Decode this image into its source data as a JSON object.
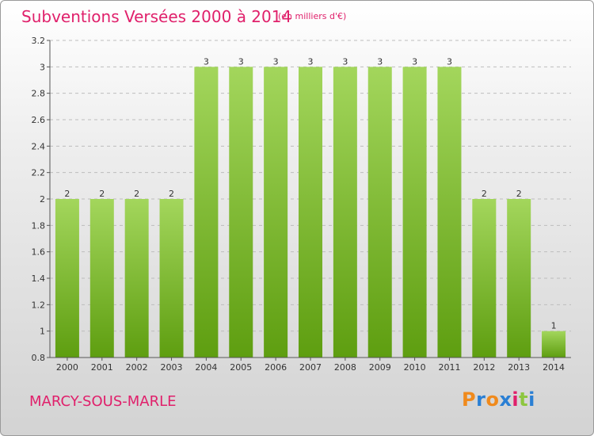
{
  "header": {
    "title": "Subventions Versées 2000 à 2014",
    "subtitle": "(en milliers d'€)"
  },
  "footer": {
    "commune": "MARCY-SOUS-MARLE",
    "logo_letters": [
      "P",
      "r",
      "o",
      "x",
      "i",
      "t",
      "i"
    ],
    "logo_colors": [
      "#f08a1c",
      "#2a7fd4",
      "#f08a1c",
      "#2a7fd4",
      "#e0206b",
      "#8dc63f",
      "#2a7fd4"
    ]
  },
  "colors": {
    "bar_top": "#a3d65c",
    "bar_bottom": "#5e9e10",
    "accent": "#e0206b",
    "grid": "#bdbdbd"
  },
  "chart_data": {
    "type": "bar",
    "title": "Subventions Versées 2000 à 2014",
    "subtitle": "(en milliers d'€)",
    "xlabel": "",
    "ylabel": "",
    "categories": [
      "2000",
      "2001",
      "2002",
      "2003",
      "2004",
      "2005",
      "2006",
      "2007",
      "2008",
      "2009",
      "2010",
      "2011",
      "2012",
      "2013",
      "2014"
    ],
    "values": [
      2,
      2,
      2,
      2,
      3,
      3,
      3,
      3,
      3,
      3,
      3,
      3,
      2,
      2,
      1
    ],
    "value_labels": [
      "2",
      "2",
      "2",
      "2",
      "3",
      "3",
      "3",
      "3",
      "3",
      "3",
      "3",
      "3",
      "2",
      "2",
      "1"
    ],
    "ylim": [
      0.8,
      3.2
    ],
    "yticks": [
      0.8,
      1,
      1.2,
      1.4,
      1.6,
      1.8,
      2,
      2.2,
      2.4,
      2.6,
      2.8,
      3,
      3.2
    ],
    "ytick_labels": [
      "0.8",
      "1",
      "1.2",
      "1.4",
      "1.6",
      "1.8",
      "2",
      "2.2",
      "2.4",
      "2.6",
      "2.8",
      "3",
      "3.2"
    ],
    "grid": true,
    "grid_style": "dashed",
    "legend": "none"
  }
}
